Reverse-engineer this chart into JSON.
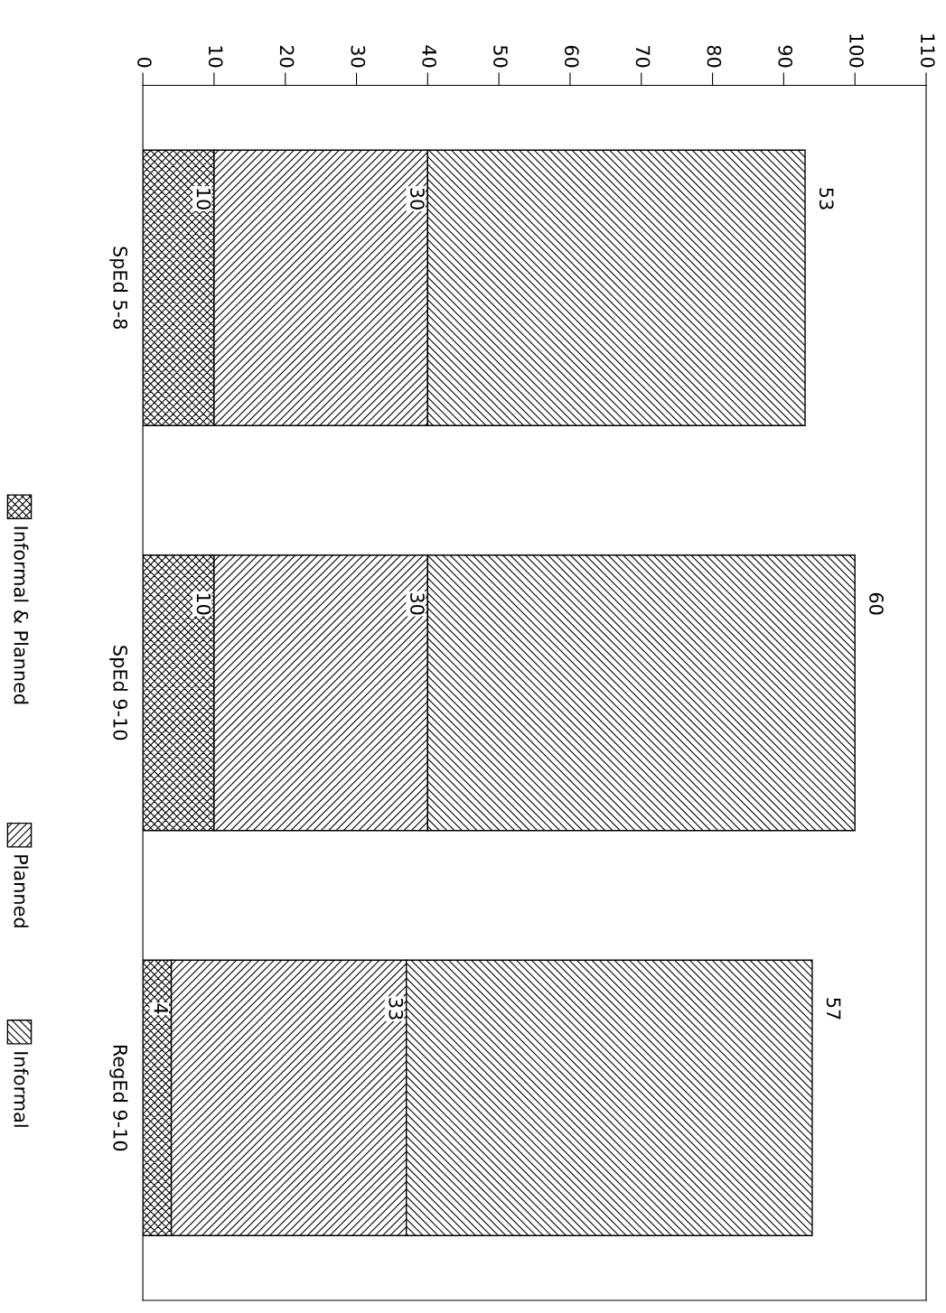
{
  "chart_data": {
    "type": "bar",
    "orientation": "horizontal",
    "stacked": true,
    "categories": [
      "SpEd 5-8",
      "SpEd 9-10",
      "RegEd 9-10"
    ],
    "series": [
      {
        "name": "Informal & Planned",
        "color": "#000000",
        "values": [
          10,
          10,
          4
        ]
      },
      {
        "name": "Planned",
        "color": "#000000",
        "values": [
          30,
          30,
          33
        ]
      },
      {
        "name": "Informal",
        "color": "#000000",
        "values": [
          53,
          60,
          57
        ]
      }
    ],
    "xlim": [
      0,
      110
    ],
    "xticks": [
      0,
      10,
      20,
      30,
      40,
      50,
      60,
      70,
      80,
      90,
      100,
      110
    ],
    "data_labels": true,
    "grid": false,
    "legend": "left"
  }
}
